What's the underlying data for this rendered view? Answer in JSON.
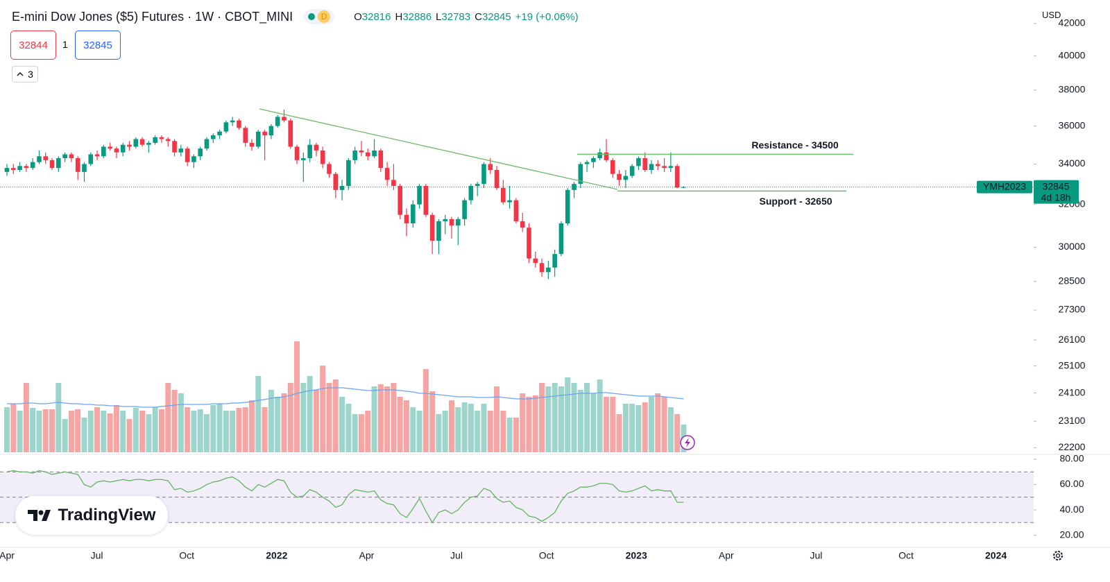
{
  "header": {
    "title": "E-mini Dow Jones ($5) Futures · 1W · CBOT_MINI",
    "badge": "D",
    "ohlc_labels": [
      "O",
      "H",
      "L",
      "C"
    ],
    "change": "+19 (+0.06%)",
    "currency": "USD"
  },
  "trade": {
    "sell": "32844",
    "qty": "1",
    "buy": "32845",
    "indicators": "3"
  },
  "price_tag": {
    "symbol": "YMH2023",
    "countdown": "4d 18h"
  },
  "logo": "TradingView",
  "chart_data": {
    "type": "candlestick",
    "log_scale": true,
    "ylim": [
      22000,
      42300
    ],
    "yticks": [
      42000,
      40000,
      38000,
      36000,
      34000,
      32000,
      30000,
      28500,
      27300,
      26100,
      25100,
      24100,
      23100,
      22200
    ],
    "x_labels": [
      "Apr",
      "Jul",
      "Oct",
      "2022",
      "Apr",
      "Jul",
      "Oct",
      "2023",
      "Apr",
      "Jul",
      "Oct",
      "2024"
    ],
    "up_color": "#089981",
    "down_color": "#f23645",
    "vol_up_color": "#9dd4cc",
    "vol_down_color": "#f5a6a4",
    "candles": [
      [
        33600,
        34000,
        33400,
        33800
      ],
      [
        33800,
        34000,
        33500,
        33700
      ],
      [
        33700,
        34100,
        33600,
        33900
      ],
      [
        33900,
        34000,
        33600,
        33800
      ],
      [
        33800,
        34300,
        33700,
        34100
      ],
      [
        34100,
        34700,
        34000,
        34400
      ],
      [
        34400,
        34600,
        34000,
        34200
      ],
      [
        34200,
        34300,
        33700,
        33800
      ],
      [
        33800,
        34400,
        33600,
        34300
      ],
      [
        34300,
        34600,
        34100,
        34500
      ],
      [
        34500,
        34600,
        34100,
        34300
      ],
      [
        34300,
        34400,
        33200,
        33600
      ],
      [
        33600,
        34100,
        33100,
        34000
      ],
      [
        34000,
        34600,
        33900,
        34500
      ],
      [
        34500,
        34700,
        34200,
        34400
      ],
      [
        34400,
        35000,
        34300,
        34900
      ],
      [
        34900,
        35100,
        34700,
        34800
      ],
      [
        34800,
        34900,
        34300,
        34600
      ],
      [
        34600,
        35100,
        34400,
        35000
      ],
      [
        35000,
        35200,
        34700,
        34900
      ],
      [
        34900,
        35400,
        34800,
        35300
      ],
      [
        35300,
        35400,
        34900,
        35000
      ],
      [
        35000,
        35200,
        34600,
        35100
      ],
      [
        35100,
        35500,
        35000,
        35400
      ],
      [
        35400,
        35500,
        35100,
        35300
      ],
      [
        35300,
        35400,
        34900,
        35200
      ],
      [
        35200,
        35300,
        34400,
        34600
      ],
      [
        34600,
        35000,
        34400,
        34800
      ],
      [
        34800,
        34900,
        33900,
        34100
      ],
      [
        34100,
        34500,
        33800,
        34400
      ],
      [
        34400,
        34900,
        34200,
        34800
      ],
      [
        34800,
        35400,
        34700,
        35300
      ],
      [
        35300,
        35600,
        35100,
        35500
      ],
      [
        35500,
        35800,
        35300,
        35700
      ],
      [
        35700,
        36300,
        35600,
        36200
      ],
      [
        36200,
        36500,
        36000,
        36300
      ],
      [
        36300,
        36400,
        35800,
        35900
      ],
      [
        35900,
        36000,
        34900,
        35100
      ],
      [
        35100,
        35300,
        34700,
        34900
      ],
      [
        34900,
        35800,
        34800,
        35700
      ],
      [
        35700,
        35800,
        34200,
        35500
      ],
      [
        35500,
        36100,
        35300,
        36000
      ],
      [
        36000,
        36600,
        35900,
        36500
      ],
      [
        36500,
        36900,
        36200,
        36300
      ],
      [
        36300,
        36400,
        34800,
        34900
      ],
      [
        34900,
        35000,
        34000,
        34200
      ],
      [
        34200,
        34600,
        33100,
        34300
      ],
      [
        34300,
        35300,
        34100,
        35000
      ],
      [
        35000,
        35100,
        34400,
        34700
      ],
      [
        34700,
        34900,
        33800,
        34000
      ],
      [
        34000,
        34100,
        33300,
        33500
      ],
      [
        33500,
        33600,
        32300,
        32700
      ],
      [
        32700,
        33200,
        32200,
        32900
      ],
      [
        32900,
        34300,
        32700,
        34200
      ],
      [
        34200,
        34900,
        34000,
        34700
      ],
      [
        34700,
        35200,
        34400,
        34600
      ],
      [
        34600,
        34800,
        34200,
        34400
      ],
      [
        34400,
        35300,
        34300,
        34700
      ],
      [
        34700,
        34800,
        33600,
        33800
      ],
      [
        33800,
        34100,
        32900,
        33200
      ],
      [
        33200,
        34000,
        32700,
        32900
      ],
      [
        32900,
        33000,
        31300,
        31500
      ],
      [
        31500,
        31800,
        30500,
        31100
      ],
      [
        31100,
        32200,
        30900,
        32000
      ],
      [
        32000,
        33000,
        31800,
        32900
      ],
      [
        32900,
        33000,
        31400,
        31500
      ],
      [
        31500,
        31600,
        29700,
        30300
      ],
      [
        30300,
        31300,
        29700,
        31200
      ],
      [
        31200,
        31500,
        30600,
        31300
      ],
      [
        31300,
        31400,
        30400,
        31000
      ],
      [
        31000,
        31400,
        30100,
        31300
      ],
      [
        31300,
        32300,
        31000,
        32200
      ],
      [
        32200,
        33000,
        32000,
        32900
      ],
      [
        32900,
        33100,
        32400,
        33000
      ],
      [
        33000,
        34100,
        32800,
        34000
      ],
      [
        34000,
        34300,
        33500,
        33700
      ],
      [
        33700,
        33900,
        32700,
        32800
      ],
      [
        32800,
        33200,
        32000,
        32100
      ],
      [
        32100,
        32900,
        31800,
        32200
      ],
      [
        32200,
        32300,
        31100,
        31200
      ],
      [
        31200,
        31600,
        30700,
        30900
      ],
      [
        30900,
        31100,
        29300,
        29500
      ],
      [
        29500,
        29800,
        29100,
        29300
      ],
      [
        29300,
        29500,
        28700,
        28900
      ],
      [
        28900,
        29400,
        28600,
        29100
      ],
      [
        29100,
        29900,
        28700,
        29700
      ],
      [
        29700,
        31200,
        29600,
        31100
      ],
      [
        31100,
        32800,
        31000,
        32700
      ],
      [
        32700,
        33100,
        32300,
        33000
      ],
      [
        33000,
        34100,
        32800,
        34000
      ],
      [
        34000,
        34200,
        33600,
        34100
      ],
      [
        34100,
        34400,
        33800,
        34300
      ],
      [
        34300,
        34800,
        34200,
        34600
      ],
      [
        34600,
        35300,
        34100,
        34200
      ],
      [
        34200,
        34300,
        33300,
        33500
      ],
      [
        33500,
        33700,
        32900,
        33200
      ],
      [
        33200,
        33700,
        32800,
        33400
      ],
      [
        33400,
        34000,
        33300,
        33900
      ],
      [
        33900,
        34400,
        33700,
        34300
      ],
      [
        34300,
        34600,
        33600,
        33700
      ],
      [
        33700,
        34200,
        33500,
        34000
      ],
      [
        34000,
        34200,
        33700,
        33900
      ],
      [
        33900,
        34300,
        33600,
        33800
      ],
      [
        33800,
        34600,
        33600,
        33900
      ],
      [
        33900,
        34000,
        32800,
        32820
      ],
      [
        32816,
        32886,
        32783,
        32845
      ]
    ],
    "volume": [
      65,
      70,
      60,
      100,
      64,
      60,
      62,
      62,
      100,
      48,
      60,
      62,
      50,
      60,
      65,
      60,
      56,
      68,
      60,
      48,
      64,
      60,
      55,
      65,
      62,
      100,
      90,
      85,
      65,
      60,
      62,
      55,
      68,
      70,
      60,
      60,
      64,
      65,
      75,
      110,
      65,
      90,
      80,
      85,
      100,
      160,
      100,
      110,
      90,
      125,
      100,
      105,
      80,
      70,
      55,
      55,
      60,
      95,
      98,
      95,
      100,
      80,
      75,
      65,
      60,
      120,
      88,
      55,
      60,
      75,
      65,
      72,
      70,
      60,
      70,
      60,
      95,
      60,
      50,
      50,
      85,
      80,
      82,
      100,
      95,
      100,
      95,
      108,
      100,
      90,
      100,
      85,
      105,
      80,
      80,
      55,
      70,
      70,
      68,
      72,
      80,
      85,
      80,
      65,
      55,
      40
    ],
    "volume_ma": [
      70,
      70,
      70,
      71,
      71,
      70,
      70,
      71,
      72,
      71,
      70,
      70,
      69,
      69,
      68,
      68,
      67,
      67,
      66,
      66,
      66,
      65,
      65,
      65,
      66,
      67,
      68,
      69,
      69,
      69,
      69,
      69,
      70,
      70,
      70,
      71,
      71,
      72,
      73,
      75,
      76,
      78,
      79,
      80,
      82,
      85,
      87,
      89,
      90,
      92,
      93,
      93,
      93,
      92,
      91,
      90,
      89,
      89,
      90,
      90,
      90,
      89,
      88,
      87,
      85,
      85,
      84,
      83,
      82,
      81,
      80,
      80,
      80,
      79,
      79,
      79,
      80,
      79,
      78,
      77,
      77,
      77,
      78,
      79,
      80,
      81,
      82,
      83,
      84,
      85,
      85,
      85,
      86,
      86,
      85,
      84,
      83,
      82,
      81,
      81,
      81,
      81,
      80,
      79,
      78,
      77
    ],
    "volume_ma_color": "#6aa3f0",
    "rsi": [
      70,
      71,
      70,
      70,
      69,
      71,
      70,
      68,
      69,
      70,
      69,
      68,
      60,
      58,
      62,
      63,
      62,
      63,
      64,
      63,
      64,
      64,
      63,
      64,
      64,
      63,
      56,
      57,
      54,
      55,
      57,
      60,
      62,
      63,
      65,
      66,
      63,
      58,
      55,
      60,
      58,
      61,
      64,
      63,
      54,
      50,
      51,
      56,
      54,
      50,
      47,
      42,
      44,
      52,
      56,
      55,
      54,
      55,
      48,
      45,
      44,
      37,
      34,
      41,
      49,
      39,
      30,
      38,
      40,
      37,
      40,
      46,
      50,
      51,
      57,
      55,
      49,
      46,
      47,
      42,
      40,
      35,
      34,
      31,
      34,
      38,
      47,
      53,
      55,
      58,
      58,
      59,
      61,
      61,
      60,
      55,
      54,
      55,
      57,
      59,
      55,
      56,
      55,
      55,
      46,
      46
    ],
    "rsi_color": "#62b35f",
    "rsi_ylim": [
      11,
      83.3
    ],
    "rsi_yticks": [
      {
        "value": 80,
        "label": "80.00"
      },
      {
        "value": 60,
        "label": "60.00"
      },
      {
        "value": 40,
        "label": "40.00"
      },
      {
        "value": 20,
        "label": "20.00"
      }
    ],
    "rsi_levels": [
      70,
      50,
      30
    ],
    "resistance": {
      "label": "Resistance - 34500",
      "value": 34500
    },
    "support": {
      "label": "Support - 32650",
      "value": 32650
    },
    "line_color": "#6dbb6a"
  }
}
